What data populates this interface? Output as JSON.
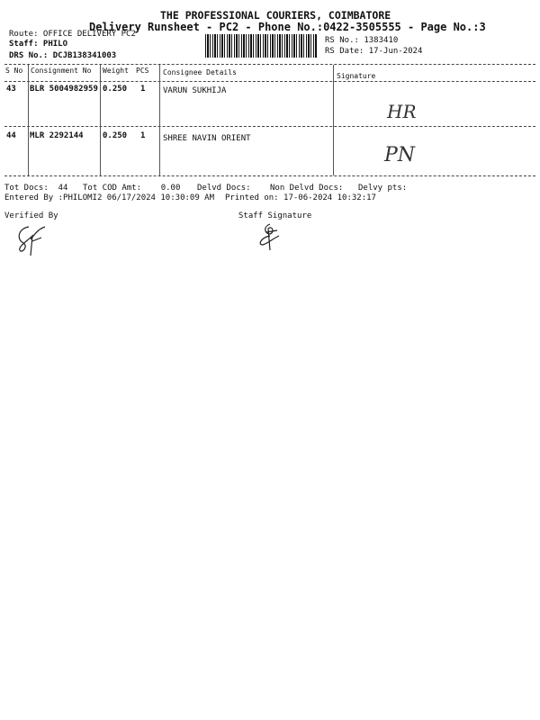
{
  "header": {
    "company": "THE PROFESSIONAL COURIERS, COIMBATORE",
    "subtitle": "Delivery Runsheet - PC2 - Phone No.:0422-3505555 - Page No.:3",
    "route": "Route: OFFICE DELIVERY PC2",
    "staff": "Staff: PHILO",
    "drs_no": "DRS No.: DCJB138341003",
    "rs_no": "RS No.: 1383410",
    "rs_date": "RS Date: 17-Jun-2024"
  },
  "table": {
    "columns": [
      "S No",
      "Consignment No",
      "Weight",
      "PCS",
      "Consignee Details",
      "Signature"
    ],
    "rows": [
      {
        "sno": "43",
        "consignment": "BLR 5004982959",
        "weight": "0.250",
        "pcs": "1",
        "consignee": "VARUN SUKHIJA",
        "signature": "HR"
      },
      {
        "sno": "44",
        "consignment": "MLR 2292144",
        "weight": "0.250",
        "pcs": "1",
        "consignee": "SHREE NAVIN ORIENT",
        "signature": "PN"
      }
    ]
  },
  "footer": {
    "tot_docs": "Tot Docs:  44",
    "tot_cod": "Tot COD Amt:    0.00",
    "delvd_docs": "Delvd Docs:",
    "non_delvd_docs": "Non Delvd Docs:",
    "delvy_pts": "Delvy pts:",
    "entered_by": "Entered By :PHILOMI2 06/17/2024 10:30:09 AM",
    "printed_on": "Printed on: 17-06-2024 10:32:17",
    "verified_by": "Verified By",
    "staff_signature": "Staff Signature"
  }
}
